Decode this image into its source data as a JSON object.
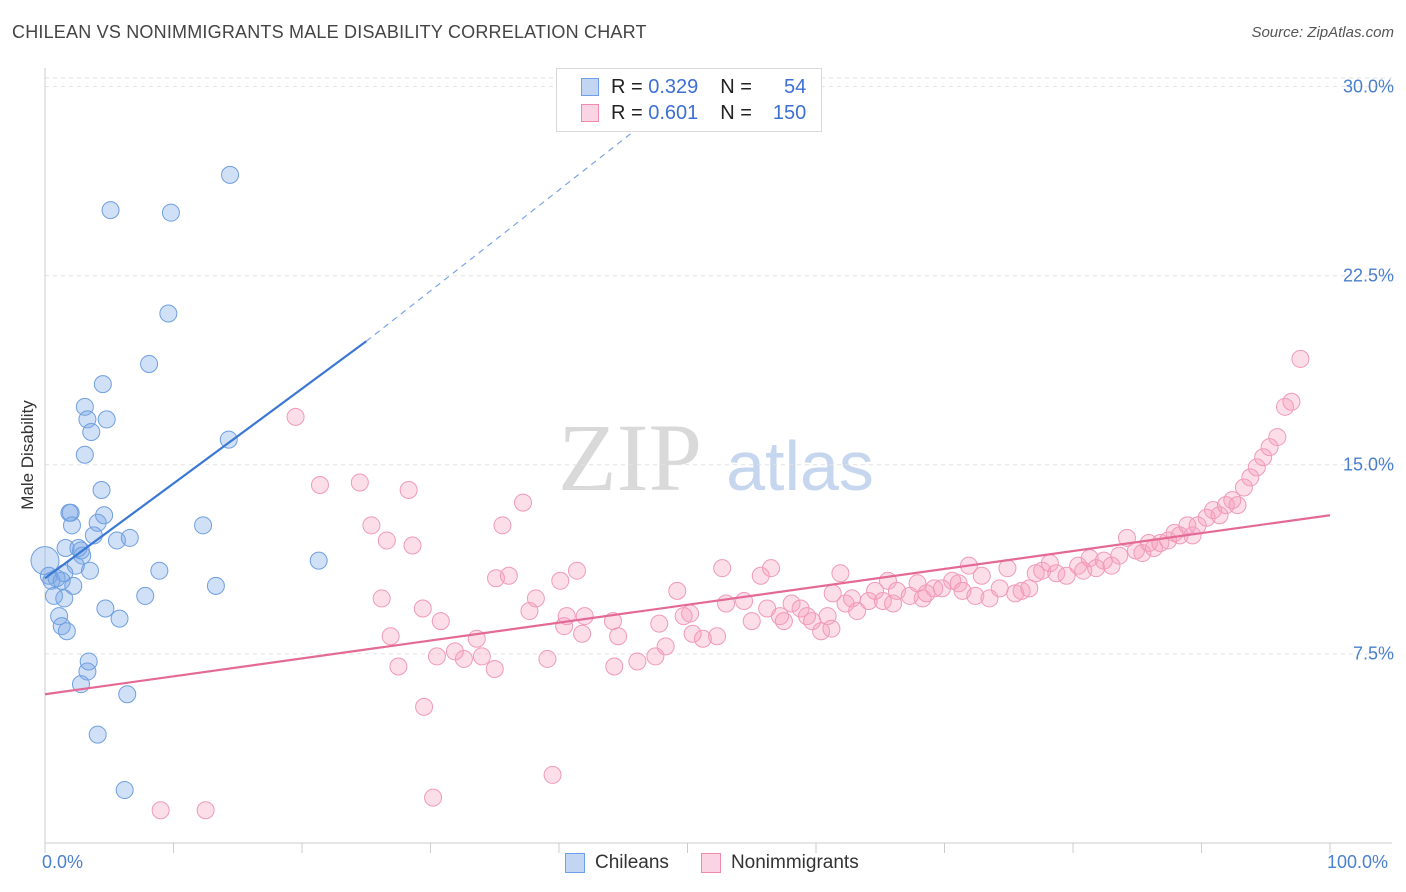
{
  "header": {
    "title": "CHILEAN VS NONIMMIGRANTS MALE DISABILITY CORRELATION CHART",
    "source": "Source: ZipAtlas.com"
  },
  "watermark": {
    "zip": "ZIP",
    "atlas": "atlas"
  },
  "legend": {
    "rows": [
      {
        "r_label": "R =",
        "r_value": "0.329",
        "n_label": "N =",
        "n_value": "54",
        "color": "#6ea0e8"
      },
      {
        "r_label": "R =",
        "r_value": "0.601",
        "n_label": "N =",
        "n_value": "150",
        "color": "#f08aab"
      }
    ],
    "bottom": [
      {
        "label": "Chileans",
        "color": "#6ea0e8"
      },
      {
        "label": "Nonimmigrants",
        "color": "#f08aab"
      }
    ]
  },
  "colors": {
    "blue": "#3b78d4",
    "blue_fill": "rgba(120,165,230,0.35)",
    "pink": "#e46a96",
    "pink_fill": "rgba(245,160,190,0.35)",
    "grid": "#e2e2e2",
    "axis_text": "#4a7fcf"
  },
  "chart_data": {
    "type": "scatter",
    "title": "CHILEAN VS NONIMMIGRANTS MALE DISABILITY CORRELATION CHART",
    "xlabel": "",
    "ylabel": "Male Disability",
    "xlim": [
      0,
      100
    ],
    "ylim": [
      0,
      30.5
    ],
    "x_ticks": [
      "0.0%",
      "100.0%"
    ],
    "y_ticks": [
      {
        "value": 7.5,
        "label": "7.5%"
      },
      {
        "value": 15.0,
        "label": "15.0%"
      },
      {
        "value": 22.5,
        "label": "22.5%"
      },
      {
        "value": 30.0,
        "label": "30.0%"
      }
    ],
    "grid": true,
    "series": [
      {
        "name": "Chileans",
        "r": 0.329,
        "n": 54,
        "trend": {
          "x0": 0,
          "y0": 10.5,
          "x1": 25,
          "y1": 19.9,
          "dashed_to_x": 47,
          "dashed_to_y": 28.7
        },
        "points": [
          [
            0,
            11.2
          ],
          [
            0.3,
            10.6
          ],
          [
            0.5,
            10.4
          ],
          [
            0.7,
            9.8
          ],
          [
            0.9,
            10.5
          ],
          [
            1.1,
            9.0
          ],
          [
            1.3,
            10.4
          ],
          [
            1.3,
            8.6
          ],
          [
            1.5,
            9.7
          ],
          [
            1.5,
            10.7
          ],
          [
            1.6,
            11.7
          ],
          [
            1.7,
            8.4
          ],
          [
            1.9,
            13.1
          ],
          [
            2.0,
            13.1
          ],
          [
            2.1,
            12.6
          ],
          [
            2.2,
            10.2
          ],
          [
            2.4,
            11.0
          ],
          [
            2.6,
            11.7
          ],
          [
            2.8,
            11.6
          ],
          [
            2.8,
            6.3
          ],
          [
            2.9,
            11.4
          ],
          [
            3.1,
            17.3
          ],
          [
            3.1,
            15.4
          ],
          [
            3.3,
            6.8
          ],
          [
            3.3,
            16.8
          ],
          [
            3.4,
            7.2
          ],
          [
            3.5,
            10.8
          ],
          [
            3.6,
            16.3
          ],
          [
            3.8,
            12.2
          ],
          [
            4.1,
            12.7
          ],
          [
            4.1,
            4.3
          ],
          [
            4.4,
            14.0
          ],
          [
            4.5,
            18.2
          ],
          [
            4.6,
            13.0
          ],
          [
            4.7,
            9.3
          ],
          [
            4.8,
            16.8
          ],
          [
            5.1,
            25.1
          ],
          [
            5.6,
            12.0
          ],
          [
            5.8,
            8.9
          ],
          [
            6.2,
            2.1
          ],
          [
            6.4,
            5.9
          ],
          [
            6.6,
            12.1
          ],
          [
            7.8,
            9.8
          ],
          [
            8.1,
            19.0
          ],
          [
            8.9,
            10.8
          ],
          [
            9.6,
            21.0
          ],
          [
            9.8,
            25.0
          ],
          [
            12.3,
            12.6
          ],
          [
            13.3,
            10.2
          ],
          [
            14.3,
            16.0
          ],
          [
            14.4,
            26.5
          ],
          [
            21.3,
            11.2
          ]
        ]
      },
      {
        "name": "Nonimmigrants",
        "r": 0.601,
        "n": 150,
        "trend": {
          "x0": 0,
          "y0": 5.9,
          "x1": 100,
          "y1": 13.0
        },
        "points": [
          [
            9.0,
            1.3
          ],
          [
            12.5,
            1.3
          ],
          [
            19.5,
            16.9
          ],
          [
            21.4,
            14.2
          ],
          [
            24.5,
            14.3
          ],
          [
            25.4,
            12.6
          ],
          [
            26.2,
            9.7
          ],
          [
            26.6,
            12.0
          ],
          [
            26.9,
            8.2
          ],
          [
            27.5,
            7.0
          ],
          [
            28.3,
            14.0
          ],
          [
            28.6,
            11.8
          ],
          [
            29.4,
            9.3
          ],
          [
            29.5,
            5.4
          ],
          [
            30.2,
            1.8
          ],
          [
            30.5,
            7.4
          ],
          [
            30.8,
            8.8
          ],
          [
            31.9,
            7.6
          ],
          [
            32.6,
            7.3
          ],
          [
            33.6,
            8.1
          ],
          [
            34.0,
            7.4
          ],
          [
            35.0,
            6.9
          ],
          [
            35.1,
            10.5
          ],
          [
            35.6,
            12.6
          ],
          [
            36.1,
            10.6
          ],
          [
            37.2,
            13.5
          ],
          [
            37.7,
            9.2
          ],
          [
            38.2,
            9.7
          ],
          [
            39.1,
            7.3
          ],
          [
            39.5,
            2.7
          ],
          [
            40.1,
            10.4
          ],
          [
            40.4,
            8.6
          ],
          [
            40.6,
            9.0
          ],
          [
            41.4,
            10.8
          ],
          [
            41.8,
            8.3
          ],
          [
            42.0,
            9.0
          ],
          [
            44.2,
            8.8
          ],
          [
            44.6,
            8.2
          ],
          [
            44.3,
            7.0
          ],
          [
            46.1,
            7.2
          ],
          [
            47.5,
            7.4
          ],
          [
            47.8,
            8.7
          ],
          [
            48.3,
            7.8
          ],
          [
            49.2,
            10.0
          ],
          [
            49.7,
            9.0
          ],
          [
            50.2,
            9.1
          ],
          [
            50.4,
            8.3
          ],
          [
            51.2,
            8.1
          ],
          [
            52.3,
            8.2
          ],
          [
            52.7,
            10.9
          ],
          [
            53.0,
            9.5
          ],
          [
            54.4,
            9.6
          ],
          [
            55.0,
            8.8
          ],
          [
            55.7,
            10.6
          ],
          [
            56.2,
            9.3
          ],
          [
            56.5,
            10.9
          ],
          [
            57.2,
            9.0
          ],
          [
            57.5,
            8.8
          ],
          [
            58.1,
            9.5
          ],
          [
            58.8,
            9.3
          ],
          [
            59.3,
            9.0
          ],
          [
            59.7,
            8.8
          ],
          [
            60.4,
            8.4
          ],
          [
            60.9,
            9.0
          ],
          [
            61.2,
            8.5
          ],
          [
            61.3,
            9.9
          ],
          [
            61.9,
            10.7
          ],
          [
            62.3,
            9.5
          ],
          [
            62.8,
            9.7
          ],
          [
            63.2,
            9.2
          ],
          [
            64.1,
            9.6
          ],
          [
            64.6,
            10.0
          ],
          [
            65.2,
            9.6
          ],
          [
            65.6,
            10.4
          ],
          [
            66.0,
            9.5
          ],
          [
            66.3,
            10.0
          ],
          [
            67.3,
            9.8
          ],
          [
            67.9,
            10.3
          ],
          [
            68.3,
            9.7
          ],
          [
            68.6,
            9.9
          ],
          [
            69.2,
            10.1
          ],
          [
            69.8,
            10.1
          ],
          [
            70.6,
            10.4
          ],
          [
            71.1,
            10.3
          ],
          [
            71.4,
            10.0
          ],
          [
            71.9,
            11.0
          ],
          [
            72.4,
            9.8
          ],
          [
            72.9,
            10.6
          ],
          [
            73.5,
            9.7
          ],
          [
            74.3,
            10.1
          ],
          [
            74.9,
            10.9
          ],
          [
            75.5,
            9.9
          ],
          [
            76.0,
            10.0
          ],
          [
            76.6,
            10.1
          ],
          [
            77.1,
            10.7
          ],
          [
            77.6,
            10.8
          ],
          [
            78.2,
            11.1
          ],
          [
            78.7,
            10.7
          ],
          [
            79.5,
            10.6
          ],
          [
            80.4,
            11.0
          ],
          [
            80.8,
            10.8
          ],
          [
            81.3,
            11.3
          ],
          [
            81.8,
            10.9
          ],
          [
            82.4,
            11.2
          ],
          [
            83.0,
            11.0
          ],
          [
            83.6,
            11.4
          ],
          [
            84.2,
            12.1
          ],
          [
            84.9,
            11.6
          ],
          [
            85.4,
            11.5
          ],
          [
            85.9,
            11.9
          ],
          [
            86.3,
            11.7
          ],
          [
            86.8,
            11.9
          ],
          [
            87.4,
            12.0
          ],
          [
            87.9,
            12.3
          ],
          [
            88.3,
            12.2
          ],
          [
            88.9,
            12.6
          ],
          [
            89.3,
            12.2
          ],
          [
            89.7,
            12.6
          ],
          [
            90.4,
            12.9
          ],
          [
            90.9,
            13.2
          ],
          [
            91.4,
            13.0
          ],
          [
            91.9,
            13.4
          ],
          [
            92.4,
            13.6
          ],
          [
            92.8,
            13.4
          ],
          [
            93.3,
            14.1
          ],
          [
            93.8,
            14.5
          ],
          [
            94.3,
            14.9
          ],
          [
            94.8,
            15.3
          ],
          [
            95.3,
            15.7
          ],
          [
            95.9,
            16.1
          ],
          [
            96.5,
            17.3
          ],
          [
            97.0,
            17.5
          ],
          [
            97.7,
            19.2
          ]
        ]
      }
    ]
  }
}
